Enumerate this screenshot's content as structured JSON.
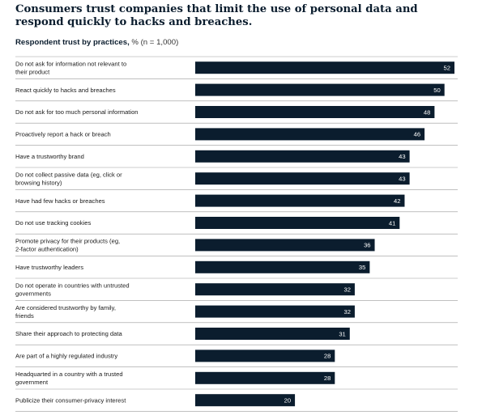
{
  "header": {
    "title": "Consumers trust companies that limit the use of personal data and respond quickly to hacks and breaches.",
    "subtitle_bold": "Respondent trust by practices,",
    "subtitle_note": " % (n = 1,000)"
  },
  "colors": {
    "bar": "#0b1d2e",
    "label_text": "#ffffff",
    "divider": "#9a9a9a"
  },
  "chart_data": {
    "type": "bar",
    "orientation": "horizontal",
    "title": "Consumers trust companies that limit the use of personal data and respond quickly to hacks and breaches.",
    "subtitle": "Respondent trust by practices, % (n = 1,000)",
    "categories": [
      "Do not ask for information not relevant to their product",
      "React quickly to hacks and breaches",
      "Do not ask for too much personal information",
      "Proactively report a hack or breach",
      "Have a trustworthy brand",
      "Do not collect passive data (eg, click or browsing history)",
      "Have had few hacks or breaches",
      "Do not use tracking cookies",
      "Promote privacy for their products (eg, 2-factor authentication)",
      "Have trustworthy leaders",
      "Do not operate in countries with untrusted governments",
      "Are considered trustworthy by family, friends",
      "Share their approach to protecting data",
      "Are part of a highly regulated industry",
      "Headquarted in a country with a trusted government",
      "Publicize their consumer-privacy interest"
    ],
    "values": [
      52,
      50,
      48,
      46,
      43,
      43,
      42,
      41,
      36,
      35,
      32,
      32,
      31,
      28,
      28,
      20
    ],
    "xlim": [
      0,
      52
    ],
    "grid": false,
    "legend": "none"
  }
}
